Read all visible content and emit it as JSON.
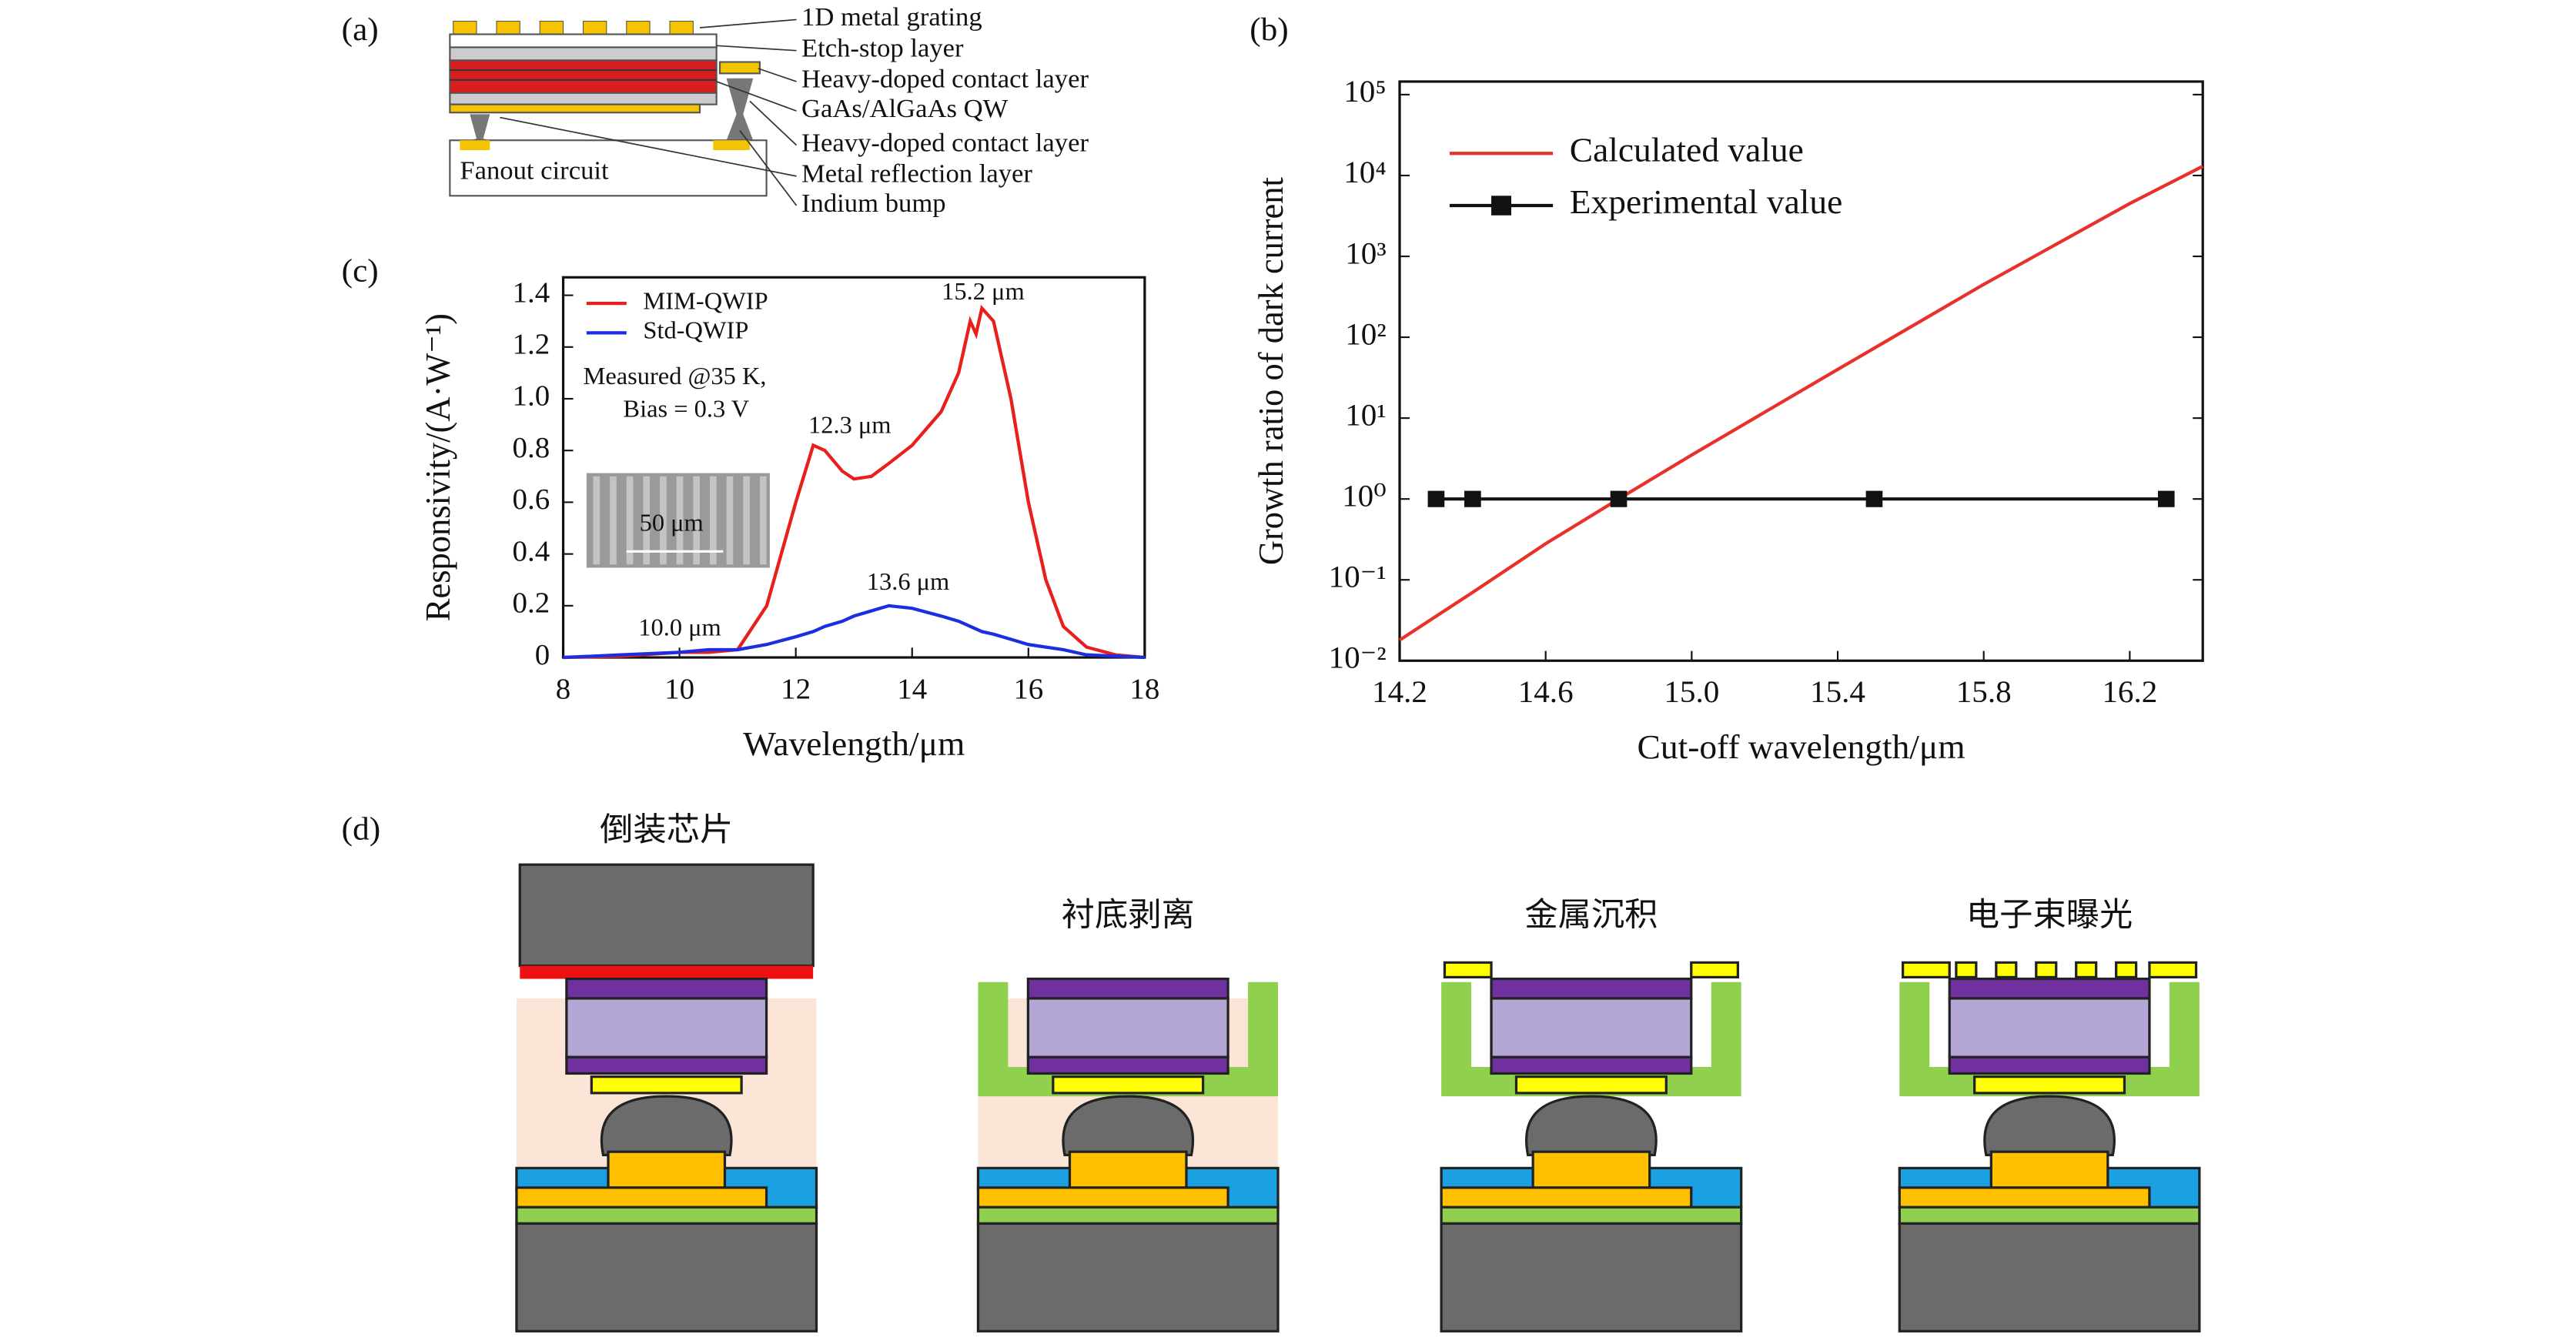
{
  "panel_labels": [
    "(a)",
    "(b)",
    "(c)",
    "(d)"
  ],
  "structure_diagram": {
    "layers": [
      "1D metal grating",
      "Etch-stop layer",
      "Heavy-doped contact layer",
      "GaAs/AlGaAs QW",
      "Heavy-doped contact layer",
      "Metal reflection layer",
      "Indium bump"
    ],
    "substrate_label": "Fanout circuit"
  },
  "process_steps": [
    "倒装芯片",
    "衬底剥离",
    "金属沉积",
    "电子束曝光"
  ],
  "chart_data": [
    {
      "type": "line",
      "log_scale_y": true,
      "xlabel": "Cut-off wavelength/μm",
      "ylabel": "Growth ratio of dark current",
      "xlim": [
        14.2,
        16.4
      ],
      "xticks": [
        14.2,
        14.6,
        {
          "value": 15,
          "label": "15.0"
        },
        15.4,
        15.8,
        16.2
      ],
      "ylim": [
        0.01,
        100000
      ],
      "yticks": [
        {
          "value": 0.01,
          "label": "10⁻²"
        },
        {
          "value": 0.1,
          "label": "10⁻¹"
        },
        {
          "value": 1,
          "label": "10⁰"
        },
        {
          "value": 10,
          "label": "10¹"
        },
        {
          "value": 100,
          "label": "10²"
        },
        {
          "value": 1000,
          "label": "10³"
        },
        {
          "value": 10000,
          "label": "10⁴"
        },
        {
          "value": 100000,
          "label": "10⁵"
        }
      ],
      "series": [
        {
          "name": "Calculated value",
          "color": "#e8312a",
          "x": [
            14.2,
            14.4,
            14.6,
            14.8,
            15.0,
            15.4,
            15.8,
            16.2,
            16.4
          ],
          "values": [
            0.018,
            0.07,
            0.28,
            1,
            3.5,
            40,
            450,
            4500,
            13000
          ]
        },
        {
          "name": "Experimental value",
          "color": "#111111",
          "marker": "square",
          "x": [
            14.3,
            14.4,
            14.8,
            15.5,
            16.3
          ],
          "values": [
            1,
            1,
            1,
            1,
            1
          ]
        }
      ]
    },
    {
      "type": "line",
      "xlabel": "Wavelength/μm",
      "ylabel": "Responsivity/(A·W⁻¹)",
      "xlim": [
        8,
        18
      ],
      "xticks": [
        8,
        10,
        12,
        14,
        16,
        18
      ],
      "ylim": [
        0,
        1.4
      ],
      "yticks": [
        0,
        0.2,
        0.4,
        0.6,
        0.8,
        {
          "value": 1,
          "label": "1.0"
        },
        1.2,
        1.4
      ],
      "x": [
        8,
        9,
        10,
        10.5,
        11,
        11.5,
        12,
        12.3,
        12.5,
        12.8,
        13,
        13.3,
        13.6,
        14,
        14.5,
        14.8,
        15,
        15.1,
        15.2,
        15.4,
        15.7,
        16,
        16.3,
        16.6,
        17,
        17.5,
        18
      ],
      "series": [
        {
          "name": "MIM-QWIP",
          "color": "#e8201c",
          "values": [
            0,
            0.005,
            0.02,
            0.02,
            0.03,
            0.2,
            0.6,
            0.82,
            0.8,
            0.72,
            0.69,
            0.7,
            0.75,
            0.82,
            0.95,
            1.1,
            1.3,
            1.25,
            1.35,
            1.3,
            1,
            0.6,
            0.3,
            0.12,
            0.04,
            0.01,
            0
          ]
        },
        {
          "name": "Std-QWIP",
          "color": "#1c2fe0",
          "values": [
            0,
            0.01,
            0.02,
            0.03,
            0.03,
            0.05,
            0.08,
            0.1,
            0.12,
            0.14,
            0.16,
            0.18,
            0.2,
            0.19,
            0.16,
            0.14,
            0.12,
            0.11,
            0.1,
            0.09,
            0.07,
            0.05,
            0.04,
            0.03,
            0.01,
            0.005,
            0
          ]
        }
      ],
      "annotations": [
        "15.2 μm",
        "12.3 μm",
        "13.6 μm",
        "10.0 μm",
        "Measured @35 K,",
        "Bias = 0.3 V",
        "50 μm"
      ]
    }
  ]
}
